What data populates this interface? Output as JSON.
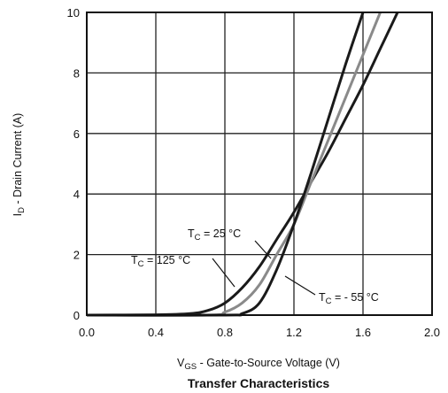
{
  "chart_data": {
    "type": "line",
    "title": "Transfer Characteristics",
    "xlabel": {
      "main": "V",
      "sub": "GS",
      "rest": " - Gate-to-Source Voltage (V)"
    },
    "ylabel": {
      "main": "I",
      "sub": "D",
      "rest": " - Drain Current (A)"
    },
    "xlim": [
      0.0,
      2.0
    ],
    "ylim": [
      0,
      10
    ],
    "xticks": [
      "0.0",
      "0.4",
      "0.8",
      "1.2",
      "1.6",
      "2.0"
    ],
    "yticks": [
      "0",
      "2",
      "4",
      "6",
      "8",
      "10"
    ],
    "grid": true,
    "series": [
      {
        "name": "TC = 125 °C",
        "color": "#1a1a1a",
        "points": [
          [
            0.0,
            0.0
          ],
          [
            0.4,
            0.01
          ],
          [
            0.6,
            0.05
          ],
          [
            0.7,
            0.15
          ],
          [
            0.8,
            0.4
          ],
          [
            0.9,
            0.9
          ],
          [
            1.0,
            1.6
          ],
          [
            1.1,
            2.5
          ],
          [
            1.2,
            3.4
          ],
          [
            1.3,
            4.4
          ],
          [
            1.4,
            5.4
          ],
          [
            1.5,
            6.5
          ],
          [
            1.6,
            7.6
          ],
          [
            1.7,
            8.8
          ],
          [
            1.8,
            10.0
          ]
        ]
      },
      {
        "name": "TC = 25 °C",
        "color": "#8a8a8a",
        "points": [
          [
            0.0,
            0.0
          ],
          [
            0.7,
            0.0
          ],
          [
            0.8,
            0.1
          ],
          [
            0.9,
            0.4
          ],
          [
            1.0,
            1.0
          ],
          [
            1.1,
            2.0
          ],
          [
            1.2,
            3.0
          ],
          [
            1.3,
            4.4
          ],
          [
            1.4,
            5.8
          ],
          [
            1.5,
            7.2
          ],
          [
            1.6,
            8.6
          ],
          [
            1.7,
            10.0
          ]
        ]
      },
      {
        "name": "TC = - 55 °C",
        "color": "#1a1a1a",
        "points": [
          [
            0.0,
            0.0
          ],
          [
            0.8,
            0.0
          ],
          [
            0.9,
            0.05
          ],
          [
            1.0,
            0.4
          ],
          [
            1.1,
            1.5
          ],
          [
            1.2,
            3.0
          ],
          [
            1.3,
            4.7
          ],
          [
            1.4,
            6.5
          ],
          [
            1.5,
            8.3
          ],
          [
            1.6,
            10.0
          ]
        ]
      }
    ],
    "annotations": [
      {
        "main": "T",
        "sub": "C",
        "rest": " = 25 °C"
      },
      {
        "main": "T",
        "sub": "C",
        "rest": " = 125 °C"
      },
      {
        "main": "T",
        "sub": "C",
        "rest": " = - 55 °C"
      }
    ]
  }
}
